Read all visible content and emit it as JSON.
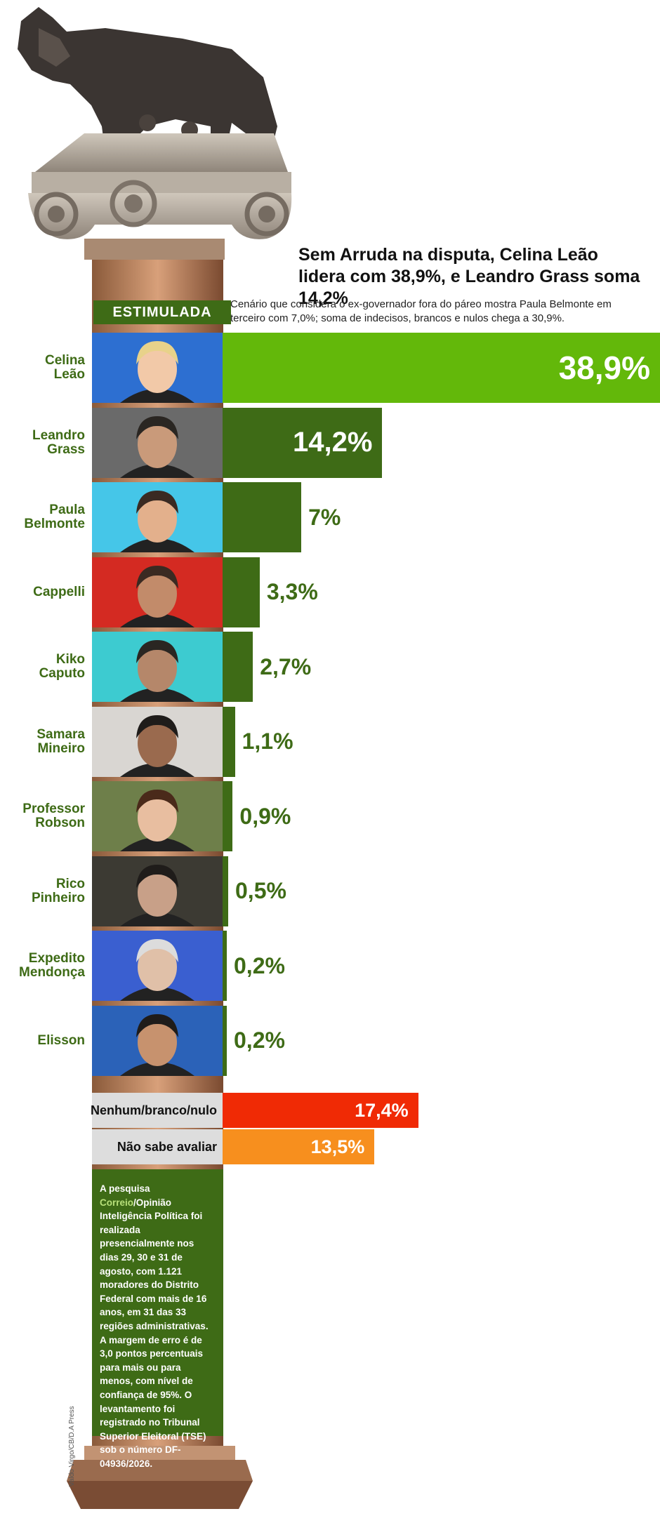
{
  "headline": "Sem Arruda na disputa, Celina Leão lidera com 38,9%, e Leandro Grass soma 14,2%",
  "subheadline": "Cenário que considera o ex-governador fora do páreo mostra Paula Belmonte em terceiro com 7,0%; soma de indecisos, brancos e nulos chega a 30,9%.",
  "tag": "ESTIMULADA",
  "colors": {
    "green_dark": "#3e6b16",
    "green_light": "#63b80a",
    "red": "#f02a05",
    "orange": "#f78f1e"
  },
  "chart_data": {
    "type": "bar",
    "orientation": "horizontal",
    "categories": [
      "Celina Leão",
      "Leandro Grass",
      "Paula Belmonte",
      "Cappelli",
      "Kiko Caputo",
      "Samara Mineiro",
      "Professor Robson",
      "Rico Pinheiro",
      "Expedito Mendonça",
      "Elisson"
    ],
    "values": [
      38.9,
      14.2,
      7.0,
      3.3,
      2.7,
      1.1,
      0.9,
      0.5,
      0.2,
      0.2
    ],
    "value_labels": [
      "38,9%",
      "14,2%",
      "7%",
      "3,3%",
      "2,7%",
      "1,1%",
      "0,9%",
      "0,5%",
      "0,2%",
      "0,2%"
    ],
    "extra": [
      {
        "label": "Nenhum/branco/nulo",
        "value": 17.4,
        "value_label": "17,4%"
      },
      {
        "label": "Não sabe avaliar",
        "value": 13.5,
        "value_label": "13,5%"
      }
    ],
    "xlim": [
      0,
      38.9
    ],
    "grid": false,
    "legend": "none"
  },
  "candidates": [
    {
      "line1": "Celina",
      "line2": "Leão"
    },
    {
      "line1": "Leandro",
      "line2": "Grass"
    },
    {
      "line1": "Paula",
      "line2": "Belmonte"
    },
    {
      "line1": "Cappelli",
      "line2": ""
    },
    {
      "line1": "Kiko",
      "line2": "Caputo"
    },
    {
      "line1": "Samara",
      "line2": "Mineiro"
    },
    {
      "line1": "Professor",
      "line2": "Robson"
    },
    {
      "line1": "Rico",
      "line2": "Pinheiro"
    },
    {
      "line1": "Expedito",
      "line2": "Mendonça"
    },
    {
      "line1": "Elisson",
      "line2": ""
    }
  ],
  "methodology": {
    "part1": "A pesquisa ",
    "highlight": "Correio",
    "part2": "/Opinião Inteligência Política foi realizada presencialmente nos dias 29, 30 e 31 de agosto, com 1.121 moradores do Distrito Federal com mais de 16 anos, em 31 das 33 regiões administrativas. A margem de erro é de 3,0 pontos percentuais para mais ou para menos, com nível de confiança de 95%. O levantamento foi registrado no Tribunal Superior Eleitoral (TSE) sob o número DF-04936/2026."
  },
  "credit": "Valdo Virgo/CB/D.A Press"
}
